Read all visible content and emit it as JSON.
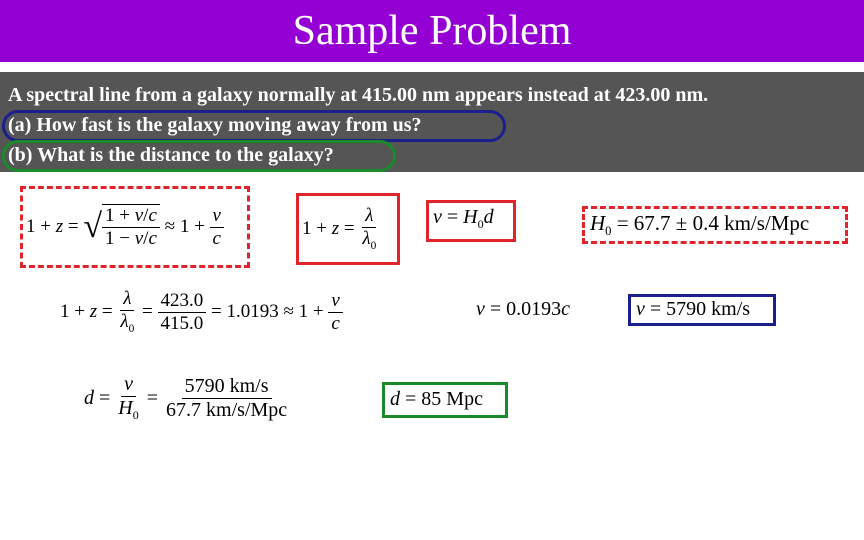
{
  "title": "Sample Problem",
  "problem": {
    "line1": "A spectral line from a galaxy normally at 415.00 nm appears instead at 423.00 nm.",
    "line2": "(a) How fast is the galaxy moving away from us?",
    "line3": "(b) What is the distance to the galaxy?"
  },
  "equations": {
    "eq_z_exact": "1 + z = √((1 + v/c)/(1 − v/c)) ≈ 1 + v/c",
    "eq_z_lambda": "1 + z = λ/λ0",
    "eq_hubble": "v = H0 d",
    "eq_h0": "H0 = 67.7 ± 0.4 km/s/Mpc",
    "eq_calc": "1 + z = λ/λ0 = 423.0/415.0 = 1.0193 ≈ 1 + v/c",
    "eq_v_c": "v = 0.0193c",
    "eq_v_result": "v = 5790 km/s",
    "eq_d_calc": "d = v/H0 = 5790 km/s / 67.7 km/s/Mpc",
    "eq_d_result": "d = 85 Mpc"
  },
  "colors": {
    "title_bg": "#9400d3",
    "problem_bg": "#555555",
    "red": "#e0242a",
    "blue": "#1a1f8c",
    "green": "#1b8a2a"
  }
}
